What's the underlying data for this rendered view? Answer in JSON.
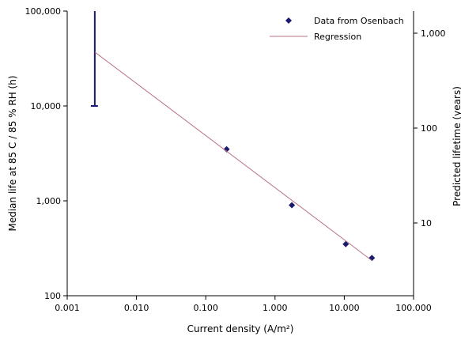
{
  "chart_data": {
    "type": "scatter",
    "xlabel": "Current density (A/m²)",
    "ylabel": "Median life at 85 C / 85 % RH (h)",
    "y2label": "Predicted lifetime (years)",
    "x_scale": "log",
    "y_scale": "log",
    "y2_scale": "log",
    "xlim": [
      0.001,
      100
    ],
    "ylim": [
      100,
      100000
    ],
    "x_ticks": [
      {
        "value": 0.001,
        "label": "0.001"
      },
      {
        "value": 0.01,
        "label": "0.010"
      },
      {
        "value": 0.1,
        "label": "0.100"
      },
      {
        "value": 1,
        "label": "1.000"
      },
      {
        "value": 10,
        "label": "10.000"
      },
      {
        "value": 100,
        "label": "100.000"
      }
    ],
    "y_ticks": [
      {
        "value": 100,
        "label": "100"
      },
      {
        "value": 1000,
        "label": "1,000"
      },
      {
        "value": 10000,
        "label": "10,000"
      },
      {
        "value": 100000,
        "label": "100,000"
      }
    ],
    "y2_ticks": [
      {
        "value": 10,
        "label": "10"
      },
      {
        "value": 100,
        "label": "100"
      },
      {
        "value": 1000,
        "label": "1,000"
      }
    ],
    "grid": false,
    "legend_position": "top-right",
    "series": [
      {
        "name": "Data from Osenbach",
        "kind": "scatter",
        "color": "#1a1a6e",
        "marker": "diamond",
        "points": [
          {
            "x": 0.2,
            "y": 3500
          },
          {
            "x": 1.75,
            "y": 900
          },
          {
            "x": 10.5,
            "y": 350
          },
          {
            "x": 25,
            "y": 250
          }
        ]
      },
      {
        "name": "Regression",
        "kind": "line",
        "color": "#b87080",
        "points": [
          {
            "x": 0.0025,
            "y": 37000
          },
          {
            "x": 25,
            "y": 235
          }
        ]
      }
    ],
    "error_bar": {
      "color": "#1a1a6e",
      "x": 0.0025,
      "y_low": 10000,
      "y_high": 100000
    }
  }
}
